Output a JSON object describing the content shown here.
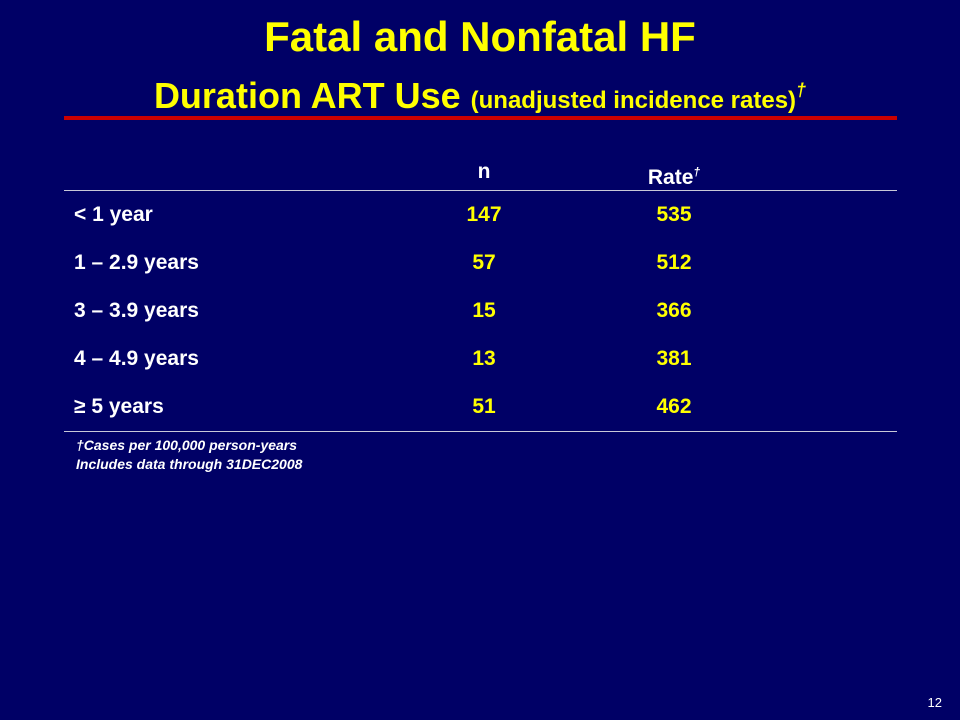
{
  "title": "Fatal and Nonfatal HF",
  "subtitle": {
    "main": "Duration ART Use",
    "paren": "(unadjusted incidence rates)",
    "dagger": "†"
  },
  "table": {
    "headers": {
      "label": "",
      "n": "n",
      "rate": "Rate",
      "rate_mark": "†"
    },
    "rows": [
      {
        "label": "< 1 year",
        "n": "147",
        "rate": "535"
      },
      {
        "label": "1 – 2.9 years",
        "n": "57",
        "rate": "512"
      },
      {
        "label": "3 – 3.9 years",
        "n": "15",
        "rate": "366"
      },
      {
        "label": "4 – 4.9 years",
        "n": "13",
        "rate": "381"
      },
      {
        "label": "≥ 5 years",
        "n": "51",
        "rate": "462"
      }
    ]
  },
  "notes": {
    "line1": "†Cases per 100,000 person-years",
    "line2": "Includes data through 31DEC2008"
  },
  "page_number": "12",
  "colors": {
    "background": "#000066",
    "title": "#ffff00",
    "rule": "#cc0000",
    "text": "#ffffff",
    "values": "#ffff00"
  }
}
